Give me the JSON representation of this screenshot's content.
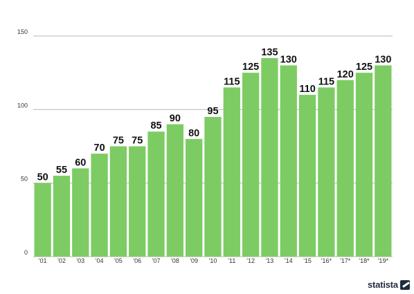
{
  "chart_data": {
    "type": "bar",
    "categories": [
      "'01",
      "'02",
      "'03",
      "'04",
      "'05",
      "'06",
      "'07",
      "'08",
      "'09",
      "'10",
      "'11",
      "'12",
      "'13",
      "'14",
      "'15",
      "'16*",
      "'17*",
      "'18*",
      "'19*"
    ],
    "values": [
      50,
      55,
      60,
      70,
      75,
      75,
      85,
      90,
      80,
      95,
      115,
      125,
      135,
      130,
      110,
      115,
      120,
      125,
      130
    ],
    "ylim": [
      0,
      150
    ],
    "yticks": [
      0,
      50,
      100,
      150
    ],
    "grid": true,
    "bar_color": "#7ccc63",
    "data_labels": true
  },
  "branding": {
    "logo_text": "statista"
  }
}
